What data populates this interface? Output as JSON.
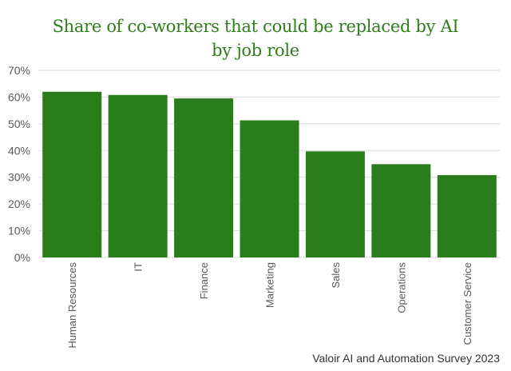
{
  "chart_data": {
    "type": "bar",
    "title_lines": [
      "Share of co-workers that could be replaced by AI",
      "by job role"
    ],
    "categories": [
      "Human Resources",
      "IT",
      "Finance",
      "Marketing",
      "Sales",
      "Operations",
      "Customer Service"
    ],
    "values": [
      62,
      60.8,
      59.5,
      51.3,
      39.7,
      34.9,
      30.8
    ],
    "ylim": [
      0,
      70
    ],
    "yticks": [
      0,
      10,
      20,
      30,
      40,
      50,
      60,
      70
    ],
    "ytick_labels": [
      "0%",
      "10%",
      "20%",
      "30%",
      "40%",
      "50%",
      "60%",
      "70%"
    ],
    "grid": true,
    "bar_color": "#2a7d1b",
    "xlabel": "",
    "ylabel": ""
  },
  "source": "Valoir AI and Automation Survey 2023",
  "colors": {
    "title": "#2e7d1a",
    "grid": "#d9d9d9",
    "axis_text": "#595959"
  }
}
